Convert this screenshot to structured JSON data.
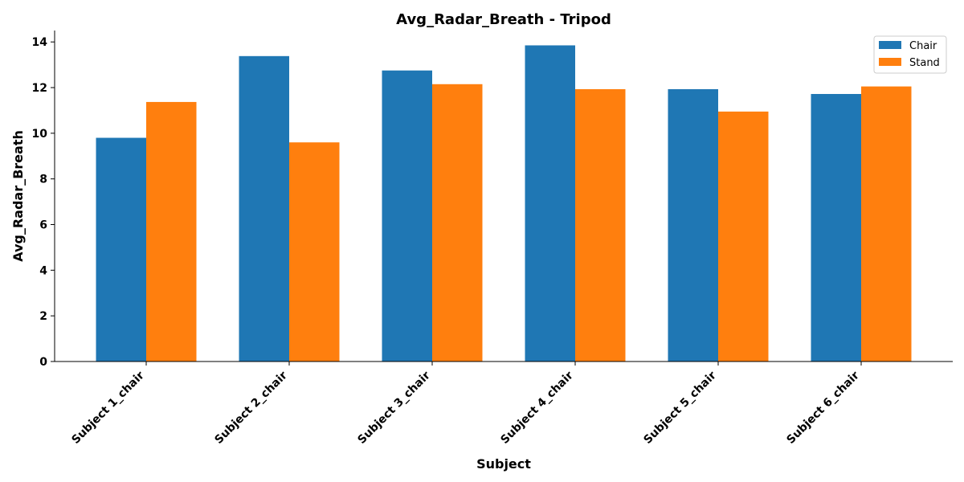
{
  "chart_data": {
    "type": "bar",
    "title": "Avg_Radar_Breath - Tripod",
    "xlabel": "Subject",
    "ylabel": "Avg_Radar_Breath",
    "categories": [
      "Subject 1_chair",
      "Subject 2_chair",
      "Subject 3_chair",
      "Subject 4_chair",
      "Subject 5_chair",
      "Subject 6_chair"
    ],
    "series": [
      {
        "name": "Chair",
        "color": "#1f77b4",
        "values": [
          9.8,
          13.38,
          12.75,
          13.85,
          11.93,
          11.72
        ]
      },
      {
        "name": "Stand",
        "color": "#ff7f0e",
        "values": [
          11.37,
          9.6,
          12.15,
          11.93,
          10.95,
          12.05
        ]
      }
    ],
    "ylim": [
      0,
      14.5
    ],
    "yticks": [
      0,
      2,
      4,
      6,
      8,
      10,
      12,
      14
    ],
    "grid": false,
    "legend": "top-right"
  }
}
